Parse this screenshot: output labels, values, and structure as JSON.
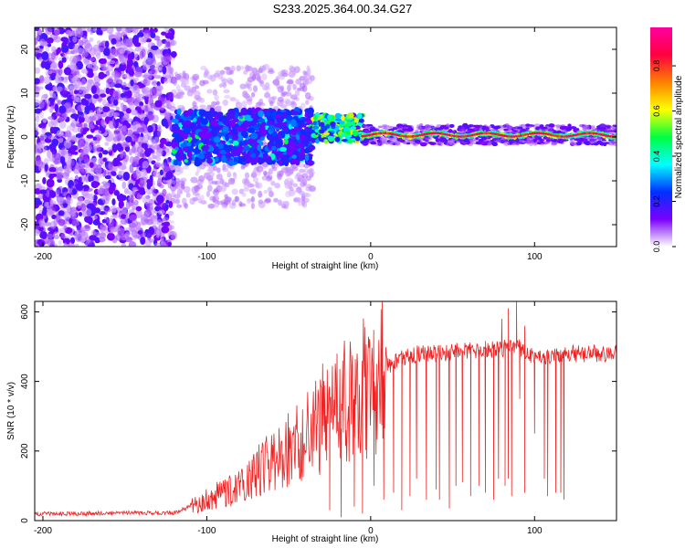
{
  "title": "S233.2025.364.00.34.G27",
  "chart_data": [
    {
      "type": "heatmap",
      "name": "spectrogram",
      "xlabel": "Height of straight line (km)",
      "ylabel": "Frequency (Hz)",
      "xlim": [
        -205,
        150
      ],
      "ylim": [
        -25,
        25
      ],
      "xticks": [
        -200,
        -100,
        0,
        100
      ],
      "yticks": [
        -20,
        -10,
        0,
        10,
        20
      ],
      "colorbar": {
        "label": "Normalized spectral amplitude",
        "range": [
          0,
          0.97
        ],
        "ticks": [
          0.0,
          0.2,
          0.4,
          0.6,
          0.8
        ],
        "colormap": [
          "#ffffff",
          "#7a00ff",
          "#0030ff",
          "#00ffff",
          "#00ff40",
          "#ffff00",
          "#ff8000",
          "#ff0040",
          "#ff00a0"
        ]
      },
      "regions": [
        {
          "description": "noise",
          "x_range": [
            -205,
            -120
          ],
          "freq_spread_hz": 25,
          "amplitude": 0.1
        },
        {
          "description": "emerging signal",
          "x_range": [
            -120,
            -35
          ],
          "freq_center_hz": 0,
          "freq_spread_hz": 6,
          "amplitude": 0.3
        },
        {
          "description": "transition",
          "x_range": [
            -35,
            -5
          ],
          "freq_center_hz": 2,
          "freq_spread_hz": 3,
          "amplitude": 0.5
        },
        {
          "description": "stable tone",
          "x_range": [
            -5,
            150
          ],
          "freq_center_hz": 0.5,
          "freq_spread_hz": 1,
          "amplitude": 0.85
        }
      ]
    },
    {
      "type": "line",
      "name": "snr",
      "xlabel": "Height of straight line (km)",
      "ylabel": "SNR (10 * v/v)",
      "xlim": [
        -205,
        150
      ],
      "ylim": [
        0,
        630
      ],
      "xticks": [
        -200,
        -100,
        0,
        100
      ],
      "yticks": [
        0,
        200,
        400,
        600
      ],
      "color": "#ee2222",
      "x": [
        -205,
        -180,
        -150,
        -120,
        -110,
        -100,
        -80,
        -60,
        -40,
        -30,
        -20,
        -10,
        0,
        10,
        20,
        30,
        40,
        60,
        80,
        90,
        100,
        120,
        150
      ],
      "y": [
        20,
        20,
        22,
        22,
        40,
        60,
        100,
        170,
        240,
        290,
        330,
        360,
        390,
        440,
        470,
        480,
        480,
        490,
        495,
        500,
        470,
        480,
        480
      ],
      "dropouts": [
        {
          "x": -25,
          "y": 30
        },
        {
          "x": -18,
          "y": 10
        },
        {
          "x": -10,
          "y": 40
        },
        {
          "x": -5,
          "y": 20
        },
        {
          "x": 2,
          "y": 100
        },
        {
          "x": 8,
          "y": 60
        },
        {
          "x": 14,
          "y": 80
        },
        {
          "x": 19,
          "y": 30
        },
        {
          "x": 24,
          "y": 70
        },
        {
          "x": 28,
          "y": 120
        },
        {
          "x": 34,
          "y": 60
        },
        {
          "x": 40,
          "y": 90
        },
        {
          "x": 42,
          "y": 60
        },
        {
          "x": 48,
          "y": 35
        },
        {
          "x": 52,
          "y": 100
        },
        {
          "x": 56,
          "y": 110
        },
        {
          "x": 61,
          "y": 70
        },
        {
          "x": 66,
          "y": 100
        },
        {
          "x": 70,
          "y": 80
        },
        {
          "x": 75,
          "y": 60
        },
        {
          "x": 78,
          "y": 120
        },
        {
          "x": 82,
          "y": 100
        },
        {
          "x": 84,
          "y": 120
        },
        {
          "x": 86,
          "y": 70
        },
        {
          "x": 91,
          "y": 350
        },
        {
          "x": 94,
          "y": 80
        },
        {
          "x": 100,
          "y": 250
        },
        {
          "x": 106,
          "y": 120
        },
        {
          "x": 108,
          "y": 70
        },
        {
          "x": 113,
          "y": 80
        },
        {
          "x": 116,
          "y": 80
        },
        {
          "x": 118,
          "y": 60
        }
      ],
      "peaks": [
        {
          "x": 80,
          "y": 580
        },
        {
          "x": 84,
          "y": 610
        },
        {
          "x": 89,
          "y": 630
        },
        {
          "x": 94,
          "y": 560
        }
      ]
    }
  ]
}
